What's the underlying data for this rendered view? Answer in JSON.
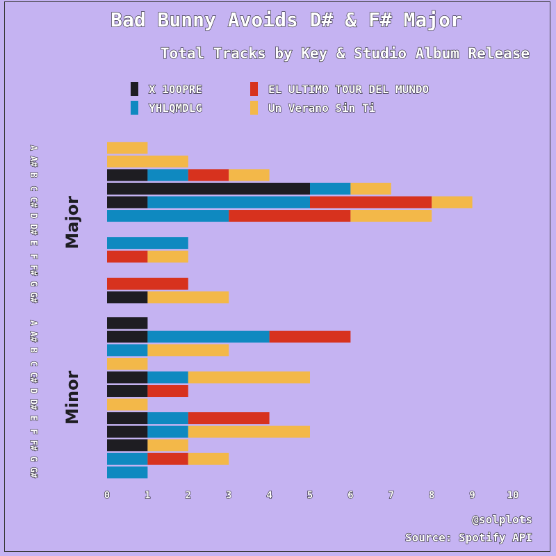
{
  "chart_data": {
    "type": "bar",
    "orientation": "horizontal",
    "stacked": true,
    "title": "Bad Bunny Avoids D# & F# Major",
    "subtitle": "Total Tracks by Key & Studio Album Release",
    "caption_lines": [
      "@solplots",
      "Source: Spotify API"
    ],
    "xlim": [
      0,
      10
    ],
    "xticks": [
      0,
      1,
      2,
      3,
      4,
      5,
      6,
      7,
      8,
      9,
      10
    ],
    "grid": false,
    "legend_position": "top",
    "series": [
      {
        "name": "X 100PRE",
        "color": "#1e1d22"
      },
      {
        "name": "YHLQMDLG",
        "color": "#0f89c0"
      },
      {
        "name": "EL ULTIMO TOUR DEL MUNDO",
        "color": "#d7321e"
      },
      {
        "name": "Un Verano Sin Ti",
        "color": "#f3b849"
      }
    ],
    "legend_order": [
      0,
      2,
      1,
      3
    ],
    "facets": [
      {
        "label": "Major",
        "keys": [
          "A",
          "A#",
          "B",
          "C",
          "C#",
          "D",
          "D#",
          "E",
          "F",
          "F#",
          "G",
          "G#"
        ],
        "values": [
          [
            0,
            0,
            0,
            1
          ],
          [
            0,
            0,
            0,
            2
          ],
          [
            1,
            1,
            1,
            1
          ],
          [
            5,
            1,
            0,
            1
          ],
          [
            1,
            4,
            3,
            1
          ],
          [
            0,
            3,
            3,
            2
          ],
          [
            0,
            0,
            0,
            0
          ],
          [
            0,
            2,
            0,
            0
          ],
          [
            0,
            0,
            1,
            1
          ],
          [
            0,
            0,
            0,
            0
          ],
          [
            0,
            0,
            2,
            0
          ],
          [
            1,
            0,
            0,
            2
          ]
        ]
      },
      {
        "label": "Minor",
        "keys": [
          "A",
          "A#",
          "B",
          "C",
          "C#",
          "D",
          "D#",
          "E",
          "F",
          "F#",
          "G",
          "G#"
        ],
        "values": [
          [
            1,
            0,
            0,
            0
          ],
          [
            1,
            3,
            2,
            0
          ],
          [
            0,
            1,
            0,
            2
          ],
          [
            0,
            0,
            0,
            1
          ],
          [
            1,
            1,
            0,
            3
          ],
          [
            1,
            0,
            1,
            0
          ],
          [
            0,
            0,
            0,
            1
          ],
          [
            1,
            1,
            2,
            0
          ],
          [
            1,
            1,
            0,
            3
          ],
          [
            1,
            0,
            0,
            1
          ],
          [
            0,
            1,
            1,
            1
          ],
          [
            0,
            1,
            0,
            0
          ]
        ]
      }
    ]
  }
}
